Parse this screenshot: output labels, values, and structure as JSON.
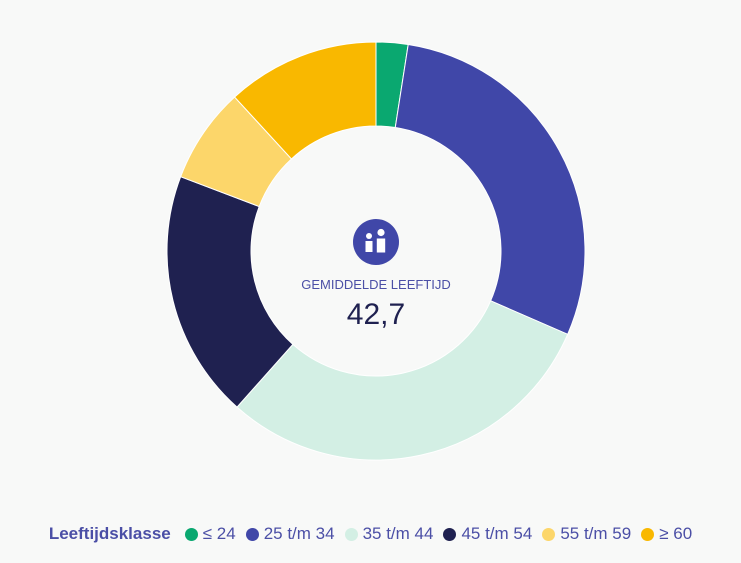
{
  "chart_data": {
    "type": "pie",
    "variant": "donut",
    "categories": [
      "≤ 24",
      "25 t/m 34",
      "35 t/m 44",
      "45 t/m 54",
      "55 t/m 59",
      "≥ 60"
    ],
    "values": [
      2.5,
      29.5,
      30.5,
      19.5,
      7.5,
      12.0
    ],
    "colors": [
      "#0aa870",
      "#4047a8",
      "#d3efe4",
      "#1f2150",
      "#fcd66a",
      "#f9b800"
    ],
    "legend_title": "Leeftijdsklasse",
    "legend_position": "bottom"
  },
  "center": {
    "label": "GEMIDDELDE LEEFTIJD",
    "value": "42,7",
    "icon": "people-icon",
    "icon_bg": "#4047a8",
    "label_color": "#4b4fa6",
    "value_color": "#1f2150"
  }
}
